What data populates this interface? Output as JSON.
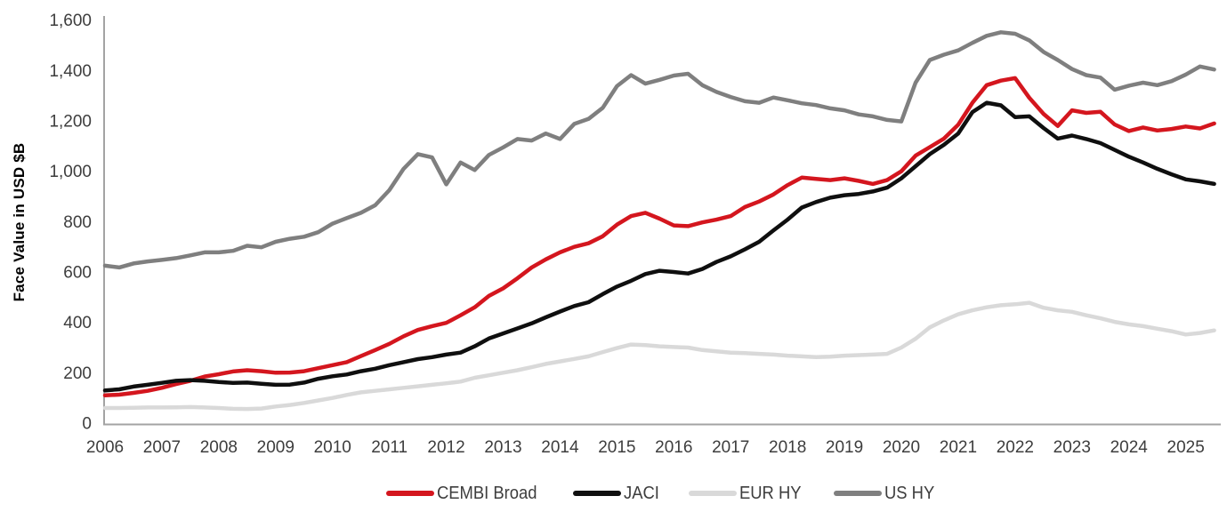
{
  "chart_data": {
    "type": "line",
    "title": "",
    "xlabel": "",
    "ylabel": "Face Value in USD $B",
    "grid": false,
    "legend_position": "bottom",
    "xlim": [
      2006,
      2025.6
    ],
    "ylim": [
      0,
      1600
    ],
    "x_ticks": [
      2006,
      2007,
      2008,
      2009,
      2010,
      2011,
      2012,
      2013,
      2014,
      2015,
      2016,
      2017,
      2018,
      2019,
      2020,
      2021,
      2022,
      2023,
      2024,
      2025
    ],
    "y_ticks": [
      {
        "value": 0,
        "label": "0"
      },
      {
        "value": 200,
        "label": "200"
      },
      {
        "value": 400,
        "label": "400"
      },
      {
        "value": 600,
        "label": "600"
      },
      {
        "value": 800,
        "label": "800"
      },
      {
        "value": 1000,
        "label": "1,000"
      },
      {
        "value": 1200,
        "label": "1,200"
      },
      {
        "value": 1400,
        "label": "1,400"
      },
      {
        "value": 1600,
        "label": "1,600"
      }
    ],
    "x_start": 2006.0,
    "x_step": 0.25,
    "series": [
      {
        "name": "CEMBI Broad",
        "color": "#d4161e",
        "stroke_width": 4.5,
        "values": [
          110,
          113,
          120,
          128,
          140,
          155,
          168,
          185,
          194,
          205,
          210,
          206,
          200,
          201,
          206,
          218,
          230,
          242,
          266,
          290,
          315,
          345,
          370,
          385,
          398,
          428,
          460,
          505,
          535,
          575,
          618,
          650,
          678,
          700,
          714,
          742,
          788,
          822,
          835,
          812,
          785,
          782,
          797,
          808,
          822,
          858,
          880,
          908,
          945,
          975,
          970,
          965,
          972,
          962,
          950,
          965,
          1000,
          1062,
          1096,
          1130,
          1185,
          1272,
          1342,
          1360,
          1370,
          1292,
          1228,
          1180,
          1242,
          1232,
          1236,
          1186,
          1160,
          1174,
          1162,
          1168,
          1178,
          1170,
          1190
        ]
      },
      {
        "name": "JACI",
        "color": "#0f0f0f",
        "stroke_width": 4.5,
        "values": [
          130,
          134,
          145,
          152,
          160,
          168,
          171,
          168,
          163,
          160,
          161,
          156,
          152,
          153,
          161,
          176,
          186,
          193,
          206,
          216,
          230,
          242,
          254,
          262,
          272,
          280,
          305,
          336,
          356,
          376,
          396,
          420,
          443,
          465,
          480,
          512,
          542,
          565,
          592,
          605,
          600,
          594,
          612,
          640,
          662,
          690,
          720,
          765,
          808,
          856,
          878,
          895,
          905,
          910,
          920,
          935,
          972,
          1020,
          1068,
          1105,
          1150,
          1235,
          1272,
          1262,
          1215,
          1218,
          1172,
          1130,
          1142,
          1128,
          1112,
          1085,
          1058,
          1035,
          1010,
          988,
          968,
          960,
          950
        ]
      },
      {
        "name": "EUR HY",
        "color": "#d9d9d9",
        "stroke_width": 4.5,
        "values": [
          60,
          60,
          61,
          62,
          62,
          63,
          64,
          62,
          60,
          57,
          56,
          58,
          66,
          72,
          80,
          90,
          100,
          112,
          122,
          128,
          134,
          140,
          146,
          152,
          158,
          165,
          180,
          190,
          200,
          210,
          222,
          235,
          245,
          255,
          265,
          282,
          298,
          312,
          310,
          305,
          302,
          300,
          290,
          285,
          280,
          278,
          275,
          272,
          268,
          265,
          262,
          264,
          268,
          270,
          272,
          275,
          300,
          335,
          380,
          408,
          432,
          448,
          460,
          468,
          472,
          478,
          458,
          448,
          442,
          428,
          416,
          402,
          392,
          385,
          375,
          365,
          352,
          358,
          368
        ]
      },
      {
        "name": "US HY",
        "color": "#7f7f7f",
        "stroke_width": 4.5,
        "values": [
          625,
          618,
          634,
          642,
          648,
          655,
          666,
          678,
          678,
          684,
          704,
          698,
          720,
          732,
          740,
          758,
          792,
          814,
          835,
          865,
          925,
          1010,
          1068,
          1055,
          948,
          1035,
          1005,
          1065,
          1095,
          1128,
          1122,
          1150,
          1128,
          1188,
          1208,
          1252,
          1338,
          1382,
          1348,
          1363,
          1380,
          1387,
          1342,
          1315,
          1295,
          1278,
          1272,
          1293,
          1282,
          1270,
          1263,
          1250,
          1242,
          1226,
          1218,
          1204,
          1198,
          1352,
          1442,
          1463,
          1480,
          1510,
          1538,
          1552,
          1546,
          1520,
          1474,
          1442,
          1406,
          1382,
          1372,
          1324,
          1340,
          1352,
          1342,
          1358,
          1384,
          1416,
          1404
        ]
      }
    ]
  },
  "colors": {
    "axis_line": "#a3a3a3",
    "tick_text": "#3d3d3d",
    "background": "#ffffff"
  }
}
